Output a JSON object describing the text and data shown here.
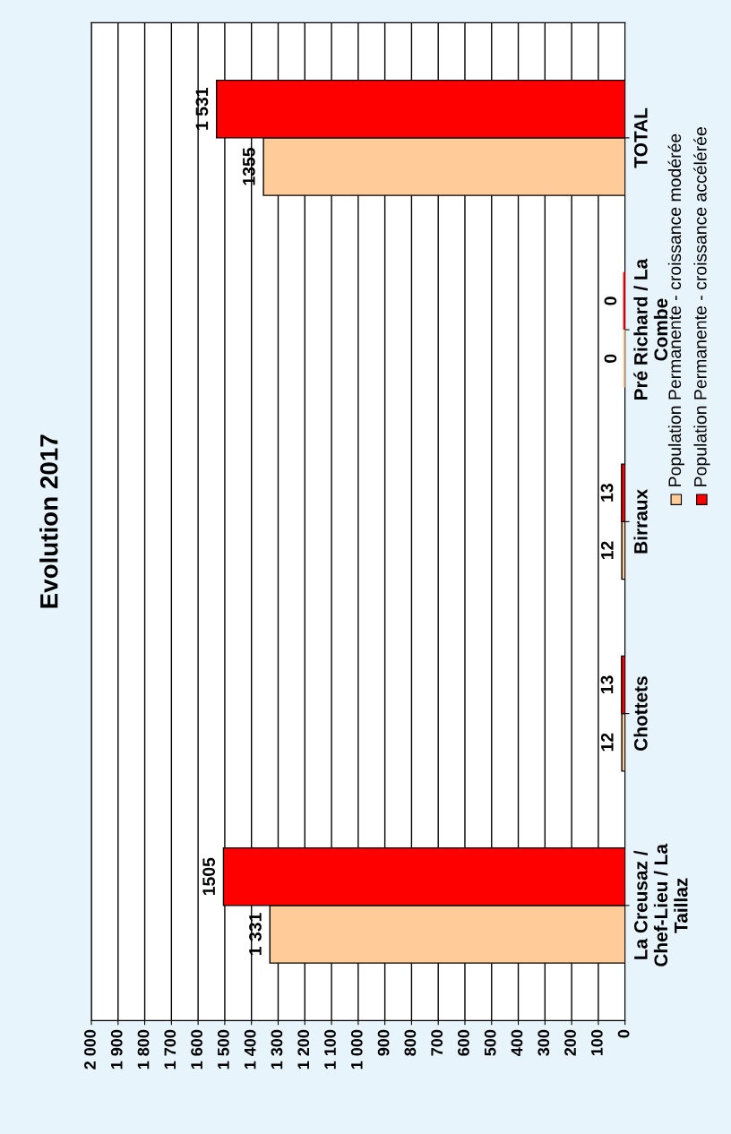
{
  "chart_data": {
    "type": "bar",
    "orientation": "horizontal",
    "title": "Evolution 2017",
    "categories": [
      "TOTAL",
      "Pré Richard / La\nCombe",
      "Birraux",
      "Chottets",
      "La Creusaz /\nChef-Lieu / La\nTaillaz"
    ],
    "series": [
      {
        "name": "Population Permanente - croissance modérée",
        "color": "#ffcc99",
        "values": [
          1355,
          0,
          12,
          12,
          1331
        ],
        "value_labels": [
          "1355",
          "0",
          "12",
          "12",
          "1 331"
        ]
      },
      {
        "name": "Population Permanente - croissance accélérée",
        "color": "#ff0000",
        "values": [
          1531,
          0,
          13,
          13,
          1505
        ],
        "value_labels": [
          "1 531",
          "0",
          "13",
          "13",
          "1505"
        ]
      }
    ],
    "xlim": [
      2000,
      0
    ],
    "xticks": [
      {
        "value": 2000,
        "label": "2 000"
      },
      {
        "value": 1900,
        "label": "1 900"
      },
      {
        "value": 1800,
        "label": "1 800"
      },
      {
        "value": 1700,
        "label": "1 700"
      },
      {
        "value": 1600,
        "label": "1 600"
      },
      {
        "value": 1500,
        "label": "1 500"
      },
      {
        "value": 1400,
        "label": "1 400"
      },
      {
        "value": 1300,
        "label": "1 300"
      },
      {
        "value": 1200,
        "label": "1 200"
      },
      {
        "value": 1100,
        "label": "1 100"
      },
      {
        "value": 1000,
        "label": "1 000"
      },
      900,
      800,
      700,
      600,
      500,
      400,
      300,
      200,
      100,
      0
    ],
    "grid": "x",
    "legend": "right"
  }
}
